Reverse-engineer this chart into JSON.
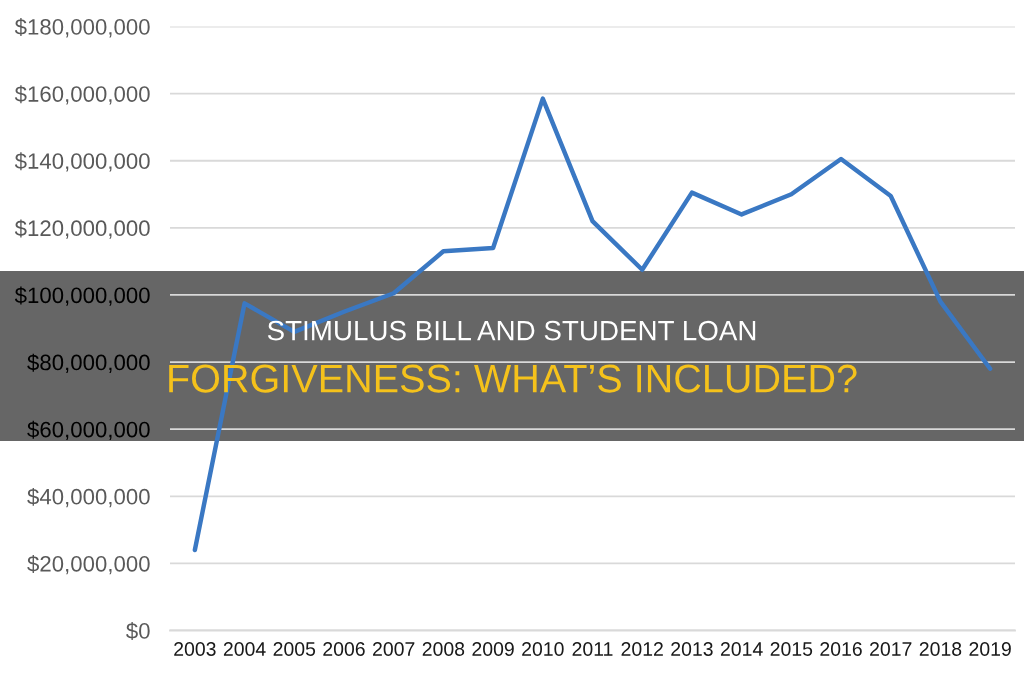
{
  "chart_data": {
    "type": "line",
    "title": "STIMULUS BILL AND STUDENT LOAN",
    "subtitle": "FORGIVENESS: WHAT’S INCLUDED?",
    "categories": [
      "2003",
      "2004",
      "2005",
      "2006",
      "2007",
      "2008",
      "2009",
      "2010",
      "2011",
      "2012",
      "2013",
      "2014",
      "2015",
      "2016",
      "2017",
      "2018",
      "2019"
    ],
    "series": [
      {
        "color": "#3a78c3",
        "values": [
          24000000,
          97500000,
          89000000,
          95000000,
          100500000,
          113000000,
          114000000,
          158500000,
          122000000,
          107500000,
          130500000,
          124000000,
          130000000,
          140500000,
          129500000,
          98000000,
          78000000
        ]
      }
    ],
    "ylim": [
      0,
      180000000
    ],
    "yticks": [
      {
        "value": 0,
        "label": "$0"
      },
      {
        "value": 20000000,
        "label": "$20,000,000"
      },
      {
        "value": 40000000,
        "label": "$40,000,000"
      },
      {
        "value": 60000000,
        "label": "$60,000,000"
      },
      {
        "value": 80000000,
        "label": "$80,000,000"
      },
      {
        "value": 100000000,
        "label": "$100,000,000"
      },
      {
        "value": 120000000,
        "label": "$120,000,000"
      },
      {
        "value": 140000000,
        "label": "$140,000,000"
      },
      {
        "value": 160000000,
        "label": "$160,000,000"
      },
      {
        "value": 180000000,
        "label": "$180,000,000"
      }
    ],
    "grid": "y",
    "line_style": "solid"
  }
}
